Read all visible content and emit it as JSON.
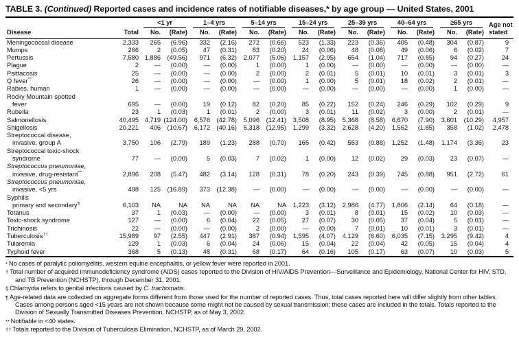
{
  "title": {
    "part1": "TABLE 3. ",
    "part2": "(Continued)",
    "part3": " Reported cases and incidence rates of notifiable diseases,* by age group — United States, 2001"
  },
  "table": {
    "header": {
      "disease": "Disease",
      "total": "Total",
      "groups": [
        "<1 yr",
        "1–4 yrs",
        "5–14 yrs",
        "15–24 yrs",
        "25–39 yrs",
        "40–64 yrs",
        "≥65 yrs"
      ],
      "no": "No.",
      "rate": "(Rate)",
      "age_not": "Age not",
      "stated": "stated"
    },
    "rows": [
      {
        "label": "Meningococcal disease",
        "total": "2,333",
        "values": [
          "265",
          "(6.96)",
          "332",
          "(2.16)",
          "272",
          "(0.66)",
          "523",
          "(1.33)",
          "223",
          "(0.36)",
          "405",
          "(0.48)",
          "304",
          "(0.87)"
        ],
        "age_not_stated": "9"
      },
      {
        "label": "Mumps",
        "total": "266",
        "values": [
          "2",
          "(0.05)",
          "47",
          "(0.31)",
          "83",
          "(0.20)",
          "24",
          "(0.06)",
          "48",
          "(0.08)",
          "49",
          "(0.06)",
          "6",
          "(0.02)"
        ],
        "age_not_stated": "7"
      },
      {
        "label": "Pertussis",
        "total": "7,580",
        "values": [
          "1,886",
          "(49.56)",
          "971",
          "(6.32)",
          "2,077",
          "(5.06)",
          "1,157",
          "(2.95)",
          "654",
          "(1.04)",
          "717",
          "(0.85)",
          "94",
          "(0.27)"
        ],
        "age_not_stated": "24"
      },
      {
        "label": "Plague",
        "total": "2",
        "values": [
          "—",
          "(0.00)",
          "—",
          "(0.00)",
          "1",
          "(0.00)",
          "1",
          "(0.00)",
          "—",
          "(0.00)",
          "—",
          "(0.00)",
          "—",
          "(0.00)"
        ],
        "age_not_stated": "—"
      },
      {
        "label": "Psittacosis",
        "total": "25",
        "values": [
          "—",
          "(0.00)",
          "—",
          "(0.00)",
          "2",
          "(0.00)",
          "2",
          "(0.01)",
          "5",
          "(0.01)",
          "10",
          "(0.01)",
          "3",
          "(0.01)"
        ],
        "age_not_stated": "3"
      },
      {
        "label": "Q fever",
        "sup": "**",
        "total": "26",
        "values": [
          "—",
          "(0.00)",
          "—",
          "(0.00)",
          "—",
          "(0.00)",
          "1",
          "(0.00)",
          "5",
          "(0.01)",
          "18",
          "(0.02)",
          "2",
          "(0.01)"
        ],
        "age_not_stated": "—"
      },
      {
        "label": "Rabies, human",
        "total": "1",
        "values": [
          "—",
          "(0.00)",
          "—",
          "(0.00)",
          "—",
          "(0.00)",
          "—",
          "(0.00)",
          "—",
          "(0.00)",
          "—",
          "(0.00)",
          "1",
          "(0.00)"
        ],
        "age_not_stated": "—"
      },
      {
        "line1": "Rocky Mountain spotted",
        "indent": true,
        "label": "fever",
        "total": "695",
        "values": [
          "—",
          "(0.00)",
          "19",
          "(0.12)",
          "82",
          "(0.20)",
          "85",
          "(0.22)",
          "152",
          "(0.24)",
          "246",
          "(0.29)",
          "102",
          "(0.29)"
        ],
        "age_not_stated": "9"
      },
      {
        "label": "Rubella",
        "total": "23",
        "values": [
          "1",
          "(0.03)",
          "1",
          "(0.01)",
          "2",
          "(0.00)",
          "3",
          "(0.01)",
          "11",
          "(0.02)",
          "3",
          "(0.00)",
          "2",
          "(0.01)"
        ],
        "age_not_stated": "—"
      },
      {
        "label": "Salmonellosis",
        "total": "40,495",
        "values": [
          "4,719",
          "(124.00)",
          "6,576",
          "(42.78)",
          "5,096",
          "(12.41)",
          "3,508",
          "(8.95)",
          "5,368",
          "(8.58)",
          "6,670",
          "(7.90)",
          "3,601",
          "(10.29)"
        ],
        "age_not_stated": "4,957"
      },
      {
        "label": "Shigellosis",
        "total": "20,221",
        "values": [
          "406",
          "(10.67)",
          "6,172",
          "(40.16)",
          "5,318",
          "(12.95)",
          "1,299",
          "(3.32)",
          "2,628",
          "(4.20)",
          "1,562",
          "(1.85)",
          "358",
          "(1.02)"
        ],
        "age_not_stated": "2,478"
      },
      {
        "line1": "Streptococcal disease,",
        "indent": true,
        "label": "invasive, group A",
        "total": "3,750",
        "values": [
          "106",
          "(2.79)",
          "189",
          "(1.23)",
          "288",
          "(0.70)",
          "165",
          "(0.42)",
          "553",
          "(0.88)",
          "1,252",
          "(1.48)",
          "1,174",
          "(3.36)"
        ],
        "age_not_stated": "23"
      },
      {
        "line1": "Streptococcal toxic-shock",
        "indent": true,
        "label": "syndrome",
        "total": "77",
        "values": [
          "—",
          "(0.00)",
          "5",
          "(0.03)",
          "7",
          "(0.02)",
          "1",
          "(0.00)",
          "12",
          "(0.02)",
          "29",
          "(0.03)",
          "23",
          "(0.07)"
        ],
        "age_not_stated": "—"
      },
      {
        "line1": "Streptococcus pneumoniae,",
        "line1_italic": true,
        "indent": true,
        "label": "invasive, drug-resistant",
        "sup": "**",
        "total": "2,896",
        "values": [
          "208",
          "(5.47)",
          "482",
          "(3.14)",
          "128",
          "(0.31)",
          "78",
          "(0.20)",
          "243",
          "(0.39)",
          "745",
          "(0.88)",
          "951",
          "(2.72)"
        ],
        "age_not_stated": "61"
      },
      {
        "line1": "Streptococcus pneumoniae,",
        "line1_italic": true,
        "indent": true,
        "label": "invasive, <5 yrs",
        "total": "498",
        "values": [
          "125",
          "(16.89)",
          "373",
          "(12.38)",
          "—",
          "(0.00)",
          "—",
          "(0.00)",
          "—",
          "(0.00)",
          "—",
          "(0.00)",
          "—",
          "(0.00)"
        ],
        "age_not_stated": "—"
      },
      {
        "line1": "Syphilis",
        "indent": true,
        "label": "primary and secondary",
        "sup": "¶",
        "total": "6,103",
        "values": [
          "NA",
          "NA",
          "NA",
          "NA",
          "NA",
          "NA",
          "1,223",
          "(3.12)",
          "2,986",
          "(4.77)",
          "1,806",
          "(2.14)",
          "64",
          "(0.18)"
        ],
        "age_not_stated": "—"
      },
      {
        "label": "Tetanus",
        "total": "37",
        "values": [
          "1",
          "(0.03)",
          "—",
          "(0.00)",
          "—",
          "(0.00)",
          "3",
          "(0.01)",
          "8",
          "(0.01)",
          "15",
          "(0.02)",
          "10",
          "(0.03)"
        ],
        "age_not_stated": "—"
      },
      {
        "label": "Toxic-shock syndrome",
        "total": "127",
        "values": [
          "—",
          "(0.00)",
          "6",
          "(0.04)",
          "22",
          "(0.05)",
          "27",
          "(0.07)",
          "30",
          "(0.05)",
          "37",
          "(0.04)",
          "5",
          "(0.01)"
        ],
        "age_not_stated": "—"
      },
      {
        "label": "Trichinosis",
        "total": "22",
        "values": [
          "—",
          "(0.00)",
          "—",
          "(0.00)",
          "2",
          "(0.00)",
          "—",
          "(0.00)",
          "7",
          "(0.01)",
          "10",
          "(0.01)",
          "3",
          "(0.01)"
        ],
        "age_not_stated": "—"
      },
      {
        "label": "Tuberculosis",
        "sup": "††",
        "total": "15,989",
        "values": [
          "97",
          "(2.55)",
          "447",
          "(2.91)",
          "387",
          "(0.94)",
          "1,595",
          "(4.07)",
          "4,129",
          "(6.60)",
          "6,035",
          "(7.15)",
          "3,295",
          "(9.42)"
        ],
        "age_not_stated": "4"
      },
      {
        "label": "Tularemia",
        "total": "129",
        "values": [
          "1",
          "(0.03)",
          "6",
          "(0.04)",
          "24",
          "(0.06)",
          "15",
          "(0.04)",
          "22",
          "(0.04)",
          "42",
          "(0.05)",
          "15",
          "(0.04)"
        ],
        "age_not_stated": "4"
      },
      {
        "label": "Typhoid fever",
        "total": "368",
        "values": [
          "5",
          "(0.13)",
          "48",
          "(0.31)",
          "68",
          "(0.17)",
          "64",
          "(0.16)",
          "105",
          "(0.17)",
          "63",
          "(0.07)",
          "10",
          "(0.03)"
        ],
        "age_not_stated": "5"
      }
    ]
  },
  "footnotes": [
    {
      "symbol": "*",
      "parts": [
        {
          "t": "No cases of paralytic poliomyelitis, western equine encephalitis,  or yellow fever were reported in 2001."
        }
      ]
    },
    {
      "symbol": "†",
      "parts": [
        {
          "t": "Total number of acquired immunodeficiency syndrome (AIDS) cases reported to the Division of HIV/AIDS Prevention—Surveillance and Epidemiology,  National Center for HIV, STD, and TB Prevention (NCHSTP), through December 31, 2001."
        }
      ]
    },
    {
      "symbol": "§",
      "parts": [
        {
          "t": "Chlamydia refers to genital infections caused by "
        },
        {
          "t": "C. trachomatis",
          "italic": true
        },
        {
          "t": "."
        }
      ]
    },
    {
      "symbol": "¶",
      "parts": [
        {
          "t": "Age-related data are collected on aggregate forms different from those used for the number of reported cases.  Thus, total cases reported here will differ slightly from other tables.  Cases among persons aged <15 years are not shown because some might not be caused by sexual transmission; these cases are included in the totals.  Totals reported to the Division of Sexually Transmitted Diseases Prevention, NCHSTP, as of May 3, 2002."
        }
      ]
    },
    {
      "symbol": "**",
      "parts": [
        {
          "t": "Notifiable in <40 states."
        }
      ]
    },
    {
      "symbol": "††",
      "parts": [
        {
          "t": "Totals reported to the Division of Tuberculosis Elimination, NCHSTP, as of March 29, 2002."
        }
      ]
    }
  ]
}
